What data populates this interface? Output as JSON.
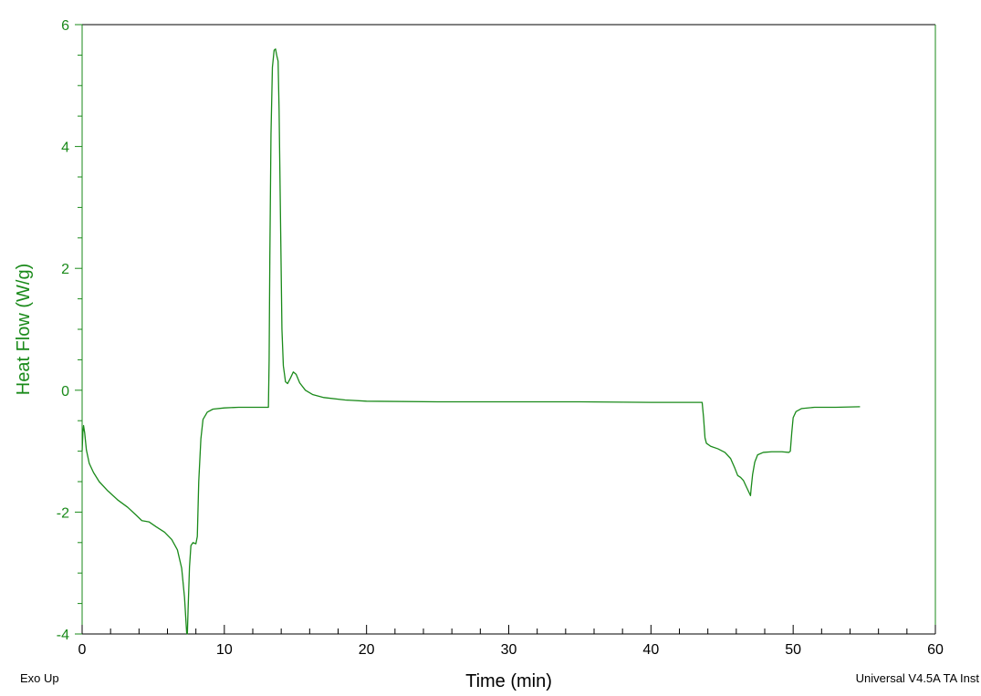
{
  "chart_data": {
    "type": "line",
    "title": "",
    "xlabel": "Time (min)",
    "ylabel": "Heat Flow (W/g)",
    "xlim": [
      0,
      60
    ],
    "ylim": [
      -4,
      6
    ],
    "xticks": [
      0,
      10,
      20,
      30,
      40,
      50,
      60
    ],
    "yticks": [
      -4,
      -2,
      0,
      2,
      4,
      6
    ],
    "grid": false,
    "legend": "none",
    "colors": {
      "series": "#1a8a1a",
      "axis_left": "#1a8a1a",
      "axis_other": "#000000"
    },
    "series": [
      {
        "points": [
          [
            0.0,
            -1.0
          ],
          [
            0.05,
            -0.7
          ],
          [
            0.1,
            -0.58
          ],
          [
            0.18,
            -0.7
          ],
          [
            0.3,
            -0.98
          ],
          [
            0.5,
            -1.2
          ],
          [
            0.8,
            -1.35
          ],
          [
            1.2,
            -1.5
          ],
          [
            1.8,
            -1.65
          ],
          [
            2.5,
            -1.8
          ],
          [
            3.2,
            -1.92
          ],
          [
            3.8,
            -2.05
          ],
          [
            4.2,
            -2.14
          ],
          [
            4.7,
            -2.16
          ],
          [
            5.2,
            -2.24
          ],
          [
            5.8,
            -2.33
          ],
          [
            6.3,
            -2.45
          ],
          [
            6.7,
            -2.62
          ],
          [
            7.0,
            -2.92
          ],
          [
            7.2,
            -3.4
          ],
          [
            7.35,
            -3.98
          ],
          [
            7.4,
            -4.0
          ],
          [
            7.45,
            -3.6
          ],
          [
            7.55,
            -2.9
          ],
          [
            7.65,
            -2.55
          ],
          [
            7.8,
            -2.5
          ],
          [
            8.0,
            -2.52
          ],
          [
            8.1,
            -2.4
          ],
          [
            8.2,
            -1.5
          ],
          [
            8.35,
            -0.8
          ],
          [
            8.5,
            -0.48
          ],
          [
            8.8,
            -0.36
          ],
          [
            9.2,
            -0.31
          ],
          [
            10.0,
            -0.29
          ],
          [
            11.0,
            -0.28
          ],
          [
            12.0,
            -0.28
          ],
          [
            13.0,
            -0.28
          ],
          [
            13.1,
            -0.28
          ],
          [
            13.15,
            0.5
          ],
          [
            13.2,
            2.2
          ],
          [
            13.28,
            4.2
          ],
          [
            13.38,
            5.3
          ],
          [
            13.5,
            5.58
          ],
          [
            13.6,
            5.6
          ],
          [
            13.68,
            5.5
          ],
          [
            13.78,
            5.4
          ],
          [
            13.85,
            4.6
          ],
          [
            13.95,
            2.8
          ],
          [
            14.05,
            1.0
          ],
          [
            14.15,
            0.4
          ],
          [
            14.3,
            0.14
          ],
          [
            14.45,
            0.11
          ],
          [
            14.65,
            0.2
          ],
          [
            14.85,
            0.3
          ],
          [
            15.05,
            0.26
          ],
          [
            15.3,
            0.12
          ],
          [
            15.7,
            0.0
          ],
          [
            16.2,
            -0.07
          ],
          [
            17.0,
            -0.12
          ],
          [
            18.5,
            -0.16
          ],
          [
            20.0,
            -0.18
          ],
          [
            25.0,
            -0.19
          ],
          [
            30.0,
            -0.19
          ],
          [
            35.0,
            -0.19
          ],
          [
            40.0,
            -0.2
          ],
          [
            43.6,
            -0.2
          ],
          [
            43.7,
            -0.45
          ],
          [
            43.8,
            -0.78
          ],
          [
            43.9,
            -0.87
          ],
          [
            44.2,
            -0.92
          ],
          [
            44.7,
            -0.96
          ],
          [
            45.2,
            -1.02
          ],
          [
            45.6,
            -1.12
          ],
          [
            45.9,
            -1.28
          ],
          [
            46.1,
            -1.4
          ],
          [
            46.3,
            -1.43
          ],
          [
            46.5,
            -1.48
          ],
          [
            46.7,
            -1.58
          ],
          [
            46.9,
            -1.68
          ],
          [
            47.0,
            -1.73
          ],
          [
            47.05,
            -1.6
          ],
          [
            47.15,
            -1.38
          ],
          [
            47.3,
            -1.18
          ],
          [
            47.5,
            -1.06
          ],
          [
            47.9,
            -1.02
          ],
          [
            48.5,
            -1.01
          ],
          [
            49.2,
            -1.01
          ],
          [
            49.7,
            -1.02
          ],
          [
            49.8,
            -1.0
          ],
          [
            49.9,
            -0.7
          ],
          [
            50.0,
            -0.45
          ],
          [
            50.2,
            -0.35
          ],
          [
            50.6,
            -0.3
          ],
          [
            51.5,
            -0.28
          ],
          [
            53.0,
            -0.28
          ],
          [
            54.7,
            -0.27
          ]
        ]
      }
    ]
  },
  "footer": {
    "left": "Exo Up",
    "right": "Universal V4.5A TA Inst"
  }
}
